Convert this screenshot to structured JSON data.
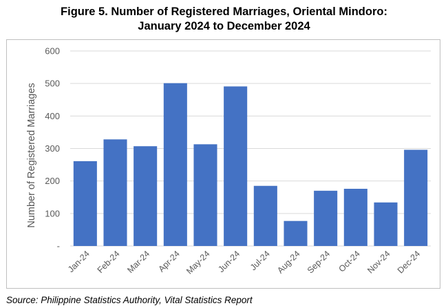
{
  "title_line1": "Figure 5. Number of Registered Marriages, Oriental Mindoro:",
  "title_line2": "January 2024 to December 2024",
  "source": "Source: Philippine Statistics Authority, Vital Statistics Report",
  "colors": {
    "bar": "#4472c4",
    "grid": "#d9d9d9",
    "axis_text": "#595959"
  },
  "chart_data": {
    "type": "bar",
    "categories": [
      "Jan-24",
      "Feb-24",
      "Mar-24",
      "Apr-24",
      "May-24",
      "Jun-24",
      "Jul-24",
      "Aug-24",
      "Sep-24",
      "Oct-24",
      "Nov-24",
      "Dec-24"
    ],
    "values": [
      261,
      328,
      307,
      501,
      313,
      491,
      185,
      77,
      170,
      176,
      134,
      296
    ],
    "ylabel": "Number of Registered Marriages",
    "xlabel": "",
    "ylim": [
      0,
      600
    ],
    "yticks": [
      0,
      100,
      200,
      300,
      400,
      500,
      600
    ],
    "ytick_labels": [
      "-",
      "100",
      "200",
      "300",
      "400",
      "500",
      "600"
    ],
    "grid": true,
    "legend": "none"
  }
}
